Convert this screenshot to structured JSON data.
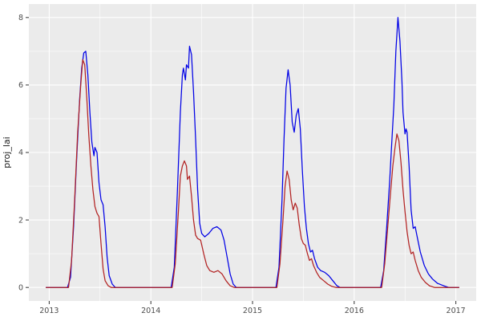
{
  "figure": {
    "background": "#FFFFFF",
    "panel_background": "#EBEBEB",
    "gridline_color": "#FFFFFF",
    "tick_color": "#333333",
    "tick_label_color": "#4D4D4D",
    "axis_title_color": "#1A1A1A"
  },
  "chart_data": {
    "type": "line",
    "title": "",
    "xlabel": "",
    "ylabel": "proj_lai",
    "grid": true,
    "legend": "none",
    "xlim": [
      2012.8,
      2017.2
    ],
    "ylim": [
      -0.4,
      8.4
    ],
    "x_ticks": [
      2013,
      2014,
      2015,
      2016,
      2017
    ],
    "x_tick_labels": [
      "2013",
      "2014",
      "2015",
      "2016",
      "2017"
    ],
    "x_minor_ticks": [
      2013.5,
      2014.5,
      2015.5,
      2016.5
    ],
    "y_ticks": [
      0,
      2,
      4,
      6,
      8
    ],
    "y_tick_labels": [
      "0",
      "2",
      "4",
      "6",
      "8"
    ],
    "y_minor_ticks": [
      1,
      3,
      5,
      7
    ],
    "series": [
      {
        "name": "blue",
        "color": "#0000E6",
        "points": [
          [
            2012.97,
            0
          ],
          [
            2013.18,
            0
          ],
          [
            2013.21,
            0.3
          ],
          [
            2013.24,
            1.8
          ],
          [
            2013.27,
            3.8
          ],
          [
            2013.3,
            5.6
          ],
          [
            2013.32,
            6.5
          ],
          [
            2013.34,
            6.95
          ],
          [
            2013.36,
            7.0
          ],
          [
            2013.38,
            6.3
          ],
          [
            2013.4,
            5.2
          ],
          [
            2013.42,
            4.3
          ],
          [
            2013.44,
            3.9
          ],
          [
            2013.45,
            4.15
          ],
          [
            2013.47,
            4.0
          ],
          [
            2013.49,
            3.1
          ],
          [
            2013.51,
            2.6
          ],
          [
            2013.53,
            2.45
          ],
          [
            2013.55,
            1.8
          ],
          [
            2013.57,
            0.9
          ],
          [
            2013.59,
            0.35
          ],
          [
            2013.62,
            0.1
          ],
          [
            2013.65,
            0
          ],
          [
            2014.2,
            0
          ],
          [
            2014.23,
            0.6
          ],
          [
            2014.26,
            2.8
          ],
          [
            2014.29,
            5.2
          ],
          [
            2014.31,
            6.3
          ],
          [
            2014.32,
            6.5
          ],
          [
            2014.34,
            6.15
          ],
          [
            2014.35,
            6.6
          ],
          [
            2014.37,
            6.5
          ],
          [
            2014.38,
            7.15
          ],
          [
            2014.4,
            6.9
          ],
          [
            2014.42,
            5.8
          ],
          [
            2014.44,
            4.4
          ],
          [
            2014.46,
            2.9
          ],
          [
            2014.48,
            1.9
          ],
          [
            2014.5,
            1.6
          ],
          [
            2014.53,
            1.5
          ],
          [
            2014.57,
            1.6
          ],
          [
            2014.61,
            1.75
          ],
          [
            2014.65,
            1.8
          ],
          [
            2014.69,
            1.7
          ],
          [
            2014.72,
            1.4
          ],
          [
            2014.75,
            0.9
          ],
          [
            2014.78,
            0.4
          ],
          [
            2014.81,
            0.1
          ],
          [
            2014.84,
            0
          ],
          [
            2015.23,
            0
          ],
          [
            2015.26,
            0.6
          ],
          [
            2015.29,
            2.6
          ],
          [
            2015.31,
            4.4
          ],
          [
            2015.33,
            5.9
          ],
          [
            2015.35,
            6.45
          ],
          [
            2015.37,
            6.0
          ],
          [
            2015.39,
            4.9
          ],
          [
            2015.41,
            4.6
          ],
          [
            2015.43,
            5.1
          ],
          [
            2015.45,
            5.3
          ],
          [
            2015.47,
            4.7
          ],
          [
            2015.49,
            3.5
          ],
          [
            2015.51,
            2.4
          ],
          [
            2015.53,
            1.75
          ],
          [
            2015.55,
            1.3
          ],
          [
            2015.57,
            1.05
          ],
          [
            2015.59,
            1.1
          ],
          [
            2015.61,
            0.85
          ],
          [
            2015.64,
            0.6
          ],
          [
            2015.67,
            0.5
          ],
          [
            2015.71,
            0.45
          ],
          [
            2015.75,
            0.35
          ],
          [
            2015.79,
            0.2
          ],
          [
            2015.83,
            0.05
          ],
          [
            2015.86,
            0
          ],
          [
            2016.26,
            0
          ],
          [
            2016.29,
            0.5
          ],
          [
            2016.32,
            1.8
          ],
          [
            2016.35,
            3.2
          ],
          [
            2016.37,
            4.3
          ],
          [
            2016.39,
            5.4
          ],
          [
            2016.41,
            7.0
          ],
          [
            2016.43,
            8.0
          ],
          [
            2016.45,
            7.3
          ],
          [
            2016.47,
            6.1
          ],
          [
            2016.48,
            5.2
          ],
          [
            2016.5,
            4.55
          ],
          [
            2016.51,
            4.7
          ],
          [
            2016.52,
            4.6
          ],
          [
            2016.54,
            3.6
          ],
          [
            2016.56,
            2.3
          ],
          [
            2016.58,
            1.75
          ],
          [
            2016.6,
            1.8
          ],
          [
            2016.62,
            1.5
          ],
          [
            2016.65,
            1.05
          ],
          [
            2016.69,
            0.65
          ],
          [
            2016.73,
            0.4
          ],
          [
            2016.77,
            0.25
          ],
          [
            2016.82,
            0.12
          ],
          [
            2016.88,
            0.05
          ],
          [
            2016.93,
            0
          ],
          [
            2017.03,
            0
          ]
        ]
      },
      {
        "name": "red",
        "color": "#B22222",
        "points": [
          [
            2012.97,
            0
          ],
          [
            2013.19,
            0
          ],
          [
            2013.22,
            0.8
          ],
          [
            2013.25,
            2.6
          ],
          [
            2013.28,
            4.6
          ],
          [
            2013.31,
            6.0
          ],
          [
            2013.33,
            6.75
          ],
          [
            2013.35,
            6.6
          ],
          [
            2013.37,
            5.6
          ],
          [
            2013.39,
            4.5
          ],
          [
            2013.41,
            3.6
          ],
          [
            2013.43,
            2.9
          ],
          [
            2013.45,
            2.4
          ],
          [
            2013.47,
            2.2
          ],
          [
            2013.49,
            2.1
          ],
          [
            2013.51,
            1.3
          ],
          [
            2013.53,
            0.55
          ],
          [
            2013.55,
            0.2
          ],
          [
            2013.58,
            0.05
          ],
          [
            2013.61,
            0
          ],
          [
            2014.21,
            0
          ],
          [
            2014.24,
            0.7
          ],
          [
            2014.27,
            2.2
          ],
          [
            2014.29,
            3.3
          ],
          [
            2014.31,
            3.6
          ],
          [
            2014.33,
            3.75
          ],
          [
            2014.35,
            3.6
          ],
          [
            2014.36,
            3.2
          ],
          [
            2014.38,
            3.3
          ],
          [
            2014.4,
            2.7
          ],
          [
            2014.42,
            2.0
          ],
          [
            2014.44,
            1.55
          ],
          [
            2014.46,
            1.45
          ],
          [
            2014.49,
            1.4
          ],
          [
            2014.52,
            1.0
          ],
          [
            2014.55,
            0.65
          ],
          [
            2014.58,
            0.5
          ],
          [
            2014.62,
            0.45
          ],
          [
            2014.66,
            0.5
          ],
          [
            2014.7,
            0.4
          ],
          [
            2014.74,
            0.2
          ],
          [
            2014.78,
            0.05
          ],
          [
            2014.82,
            0
          ],
          [
            2015.24,
            0
          ],
          [
            2015.27,
            0.7
          ],
          [
            2015.3,
            2.0
          ],
          [
            2015.32,
            3.0
          ],
          [
            2015.34,
            3.45
          ],
          [
            2015.36,
            3.2
          ],
          [
            2015.38,
            2.6
          ],
          [
            2015.4,
            2.3
          ],
          [
            2015.42,
            2.5
          ],
          [
            2015.44,
            2.35
          ],
          [
            2015.46,
            1.85
          ],
          [
            2015.48,
            1.45
          ],
          [
            2015.5,
            1.3
          ],
          [
            2015.52,
            1.25
          ],
          [
            2015.54,
            1.0
          ],
          [
            2015.56,
            0.8
          ],
          [
            2015.58,
            0.85
          ],
          [
            2015.6,
            0.65
          ],
          [
            2015.63,
            0.45
          ],
          [
            2015.66,
            0.3
          ],
          [
            2015.7,
            0.2
          ],
          [
            2015.74,
            0.1
          ],
          [
            2015.78,
            0.03
          ],
          [
            2015.82,
            0
          ],
          [
            2016.27,
            0
          ],
          [
            2016.3,
            0.7
          ],
          [
            2016.33,
            1.8
          ],
          [
            2016.36,
            2.9
          ],
          [
            2016.38,
            3.6
          ],
          [
            2016.4,
            4.1
          ],
          [
            2016.42,
            4.55
          ],
          [
            2016.44,
            4.35
          ],
          [
            2016.46,
            3.7
          ],
          [
            2016.48,
            2.9
          ],
          [
            2016.5,
            2.25
          ],
          [
            2016.52,
            1.65
          ],
          [
            2016.54,
            1.25
          ],
          [
            2016.56,
            1.0
          ],
          [
            2016.58,
            1.05
          ],
          [
            2016.6,
            0.8
          ],
          [
            2016.63,
            0.5
          ],
          [
            2016.66,
            0.3
          ],
          [
            2016.7,
            0.15
          ],
          [
            2016.74,
            0.05
          ],
          [
            2016.79,
            0
          ],
          [
            2017.03,
            0
          ]
        ]
      }
    ]
  }
}
